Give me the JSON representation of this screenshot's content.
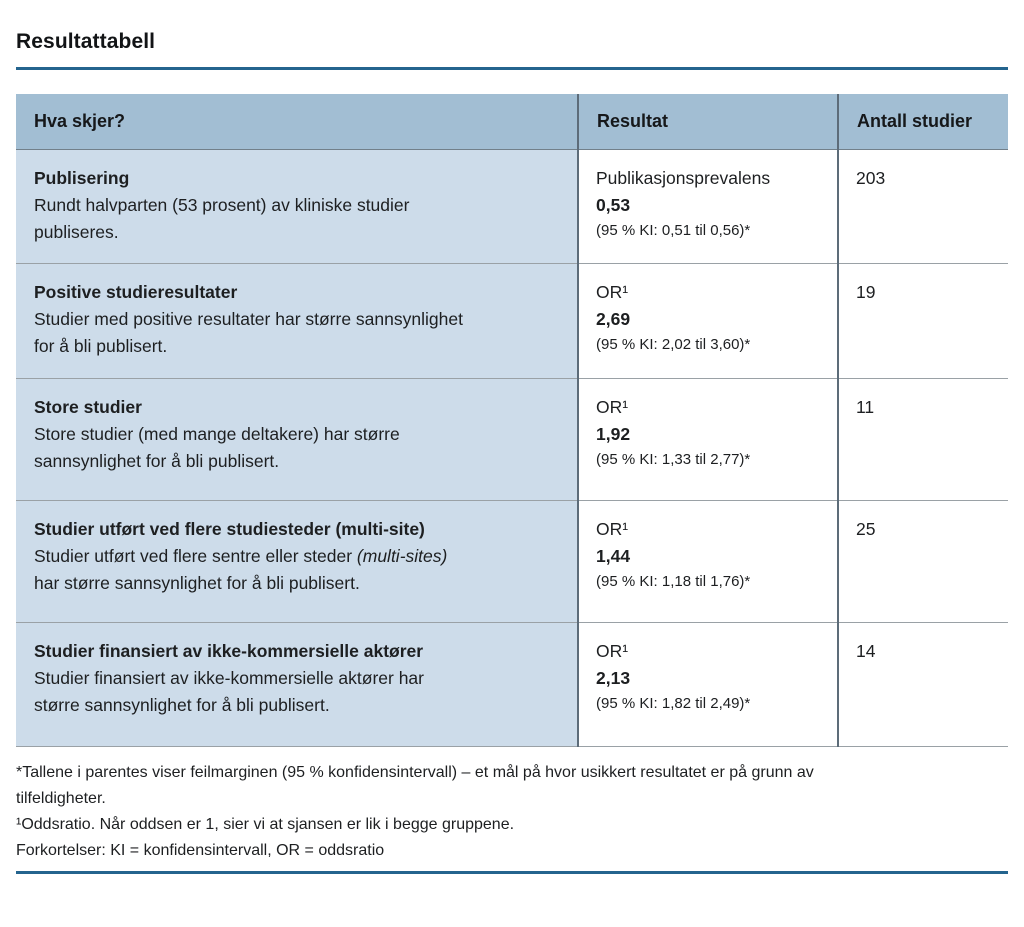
{
  "page": {
    "title": "Resultattabell"
  },
  "colors": {
    "accent_rule": "#24648e",
    "header_bg": "#a2bed3",
    "label_column_bg": "#cddcea"
  },
  "table": {
    "headers": [
      "Hva skjer?",
      "Resultat",
      "Antall studier"
    ],
    "rows": [
      {
        "title": "Publisering",
        "desc": "Rundt halvparten (53 prosent) av kliniske studier\npubliseres.",
        "desc_italic": "",
        "desc_after": "",
        "result_label": "Publikasjonsprevalens",
        "result_value": "0,53",
        "result_ci": "(95 % KI: 0,51 til 0,56)*",
        "count": "203"
      },
      {
        "title": "Positive studieresultater",
        "desc": "Studier med positive resultater har større sannsynlighet\nfor å bli publisert.",
        "desc_italic": "",
        "desc_after": "",
        "result_label": "OR¹",
        "result_value": "2,69",
        "result_ci": "(95 % KI: 2,02 til 3,60)*",
        "count": "19"
      },
      {
        "title": "Store studier",
        "desc": "Store studier (med mange deltakere) har større\nsannsynlighet for å bli publisert.",
        "desc_italic": "",
        "desc_after": "",
        "result_label": "OR¹",
        "result_value": "1,92",
        "result_ci": "(95 % KI: 1,33 til 2,77)*",
        "count": "11"
      },
      {
        "title": "Studier utført ved flere studiesteder (multi-site)",
        "desc": "Studier utført ved flere sentre eller steder ",
        "desc_italic": "(multi-sites)",
        "desc_after": "\nhar større sannsynlighet for å bli publisert.",
        "result_label": "OR¹",
        "result_value": "1,44",
        "result_ci": "(95 % KI: 1,18 til 1,76)*",
        "count": "25"
      },
      {
        "title": "Studier finansiert av ikke-kommersielle aktører",
        "desc": "Studier finansiert av ikke-kommersielle aktører har\nstørre sannsynlighet for å bli publisert.",
        "desc_italic": "",
        "desc_after": "",
        "result_label": "OR¹",
        "result_value": "2,13",
        "result_ci": "(95 % KI: 1,82 til 2,49)*",
        "count": "14"
      }
    ]
  },
  "footnotes": [
    "*Tallene i parentes viser feilmarginen (95 % konfidensintervall) – et mål på hvor usikkert resultatet er på grunn av\ntilfeldigheter.",
    "¹Oddsratio. Når oddsen er 1, sier vi at sjansen er lik i begge gruppene.",
    "Forkortelser: KI = konfidensintervall, OR = oddsratio"
  ]
}
